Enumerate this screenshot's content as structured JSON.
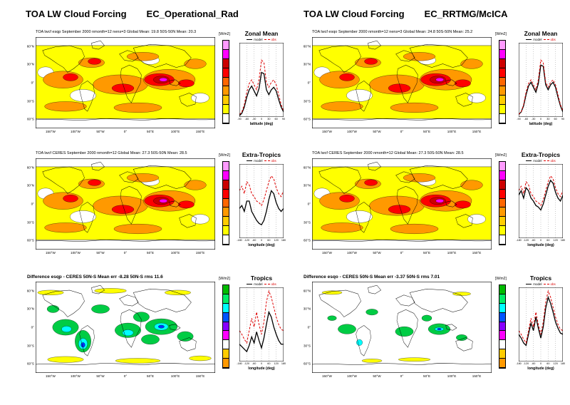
{
  "header": {
    "left_title": "TOA LW Cloud Forcing",
    "left_subtitle": "EC_Operational_Rad",
    "right_title": "TOA LW Cloud Forcing",
    "right_subtitle": "EC_RRTMG/McICA"
  },
  "units_label": "[W/m2]",
  "legend": {
    "model_label": "model",
    "obs_label": "obs"
  },
  "axis": {
    "lat_ticks": [
      "60°N",
      "30°N",
      "0°",
      "30°S",
      "60°S"
    ],
    "lon_ticks": [
      "150°W",
      "100°W",
      "50°W",
      "0°",
      "50°E",
      "100°E",
      "150°E"
    ],
    "latitude_label": "latitude (deg)",
    "longitude_label": "longitude (deg)"
  },
  "maps": {
    "left_model": {
      "caption": "TOA lwcf  esqp  September 2000 nmonth=12 nens=3  Global Mean: 19.8  50S-50N Mean: 20.3"
    },
    "left_obs": {
      "caption": "TOA lwcf  CERES  September 2000 nmonth=12  Global Mean: 27.3  50S-50N Mean: 28.5"
    },
    "left_diff": {
      "caption": "Difference esqp - CERES  50N-S Mean err -8.28 50N-S rms 11.6"
    },
    "right_model": {
      "caption": "TOA lwcf  esqo  September 2000 nmonth=12 nens=3  Global Mean: 24.8  50S-50N Mean: 25.2"
    },
    "right_obs": {
      "caption": "TOA lwcf  CERES  September 2000 nmonth=12  Global Mean: 27.3  50S-50N Mean: 28.5"
    },
    "right_diff": {
      "caption": "Difference esqo - CERES  50N-S Mean err -3.37 50N-S rms 7.01"
    }
  },
  "colorbars": {
    "field": [
      "#ff9aff",
      "#ff00ff",
      "#cc0000",
      "#ff0000",
      "#ff6600",
      "#ff9900",
      "#ffcc00",
      "#ffff00",
      "#ffffff"
    ],
    "diff": [
      "#00bb00",
      "#00ee66",
      "#00ffff",
      "#0055ff",
      "#8800ff",
      "#ff00ff",
      "#ffffff",
      "#ffcc00",
      "#ff9900"
    ]
  },
  "lineplots": {
    "zonal": {
      "title": "Zonal Mean",
      "xlabel": "latitude (deg)"
    },
    "extra": {
      "title": "Extra-Tropics",
      "xlabel": "longitude (deg)"
    },
    "tropics": {
      "title": "Tropics",
      "xlabel": "longitude (deg)"
    }
  },
  "chart_data": [
    {
      "id": "zonal_left",
      "type": "line",
      "title": "Zonal Mean",
      "xlabel": "latitude (deg)",
      "ylabel": "W/m2",
      "x": [
        -90,
        -80,
        -70,
        -60,
        -50,
        -40,
        -30,
        -20,
        -10,
        0,
        10,
        20,
        30,
        40,
        50,
        60,
        70,
        80,
        90
      ],
      "xticks": [
        -90,
        -60,
        -30,
        0,
        30,
        60,
        90
      ],
      "ylim": [
        0,
        60
      ],
      "series": [
        {
          "name": "model",
          "color": "#000000",
          "dash": false,
          "values": [
            1,
            3,
            8,
            16,
            22,
            25,
            21,
            17,
            23,
            36,
            35,
            22,
            18,
            22,
            24,
            21,
            14,
            8,
            4
          ]
        },
        {
          "name": "obs",
          "color": "#dd0000",
          "dash": true,
          "values": [
            2,
            4,
            10,
            20,
            27,
            30,
            26,
            22,
            30,
            46,
            44,
            28,
            24,
            28,
            30,
            26,
            18,
            10,
            5
          ]
        }
      ]
    },
    {
      "id": "extra_left",
      "type": "line",
      "title": "Extra-Tropics",
      "xlabel": "longitude (deg)",
      "ylabel": "W/m2",
      "x": [
        -180,
        -160,
        -140,
        -120,
        -100,
        -80,
        -60,
        -40,
        -20,
        0,
        20,
        40,
        60,
        80,
        100,
        120,
        140,
        160,
        180
      ],
      "xticks": [
        -180,
        -120,
        -60,
        0,
        60,
        120,
        180
      ],
      "ylim": [
        0,
        50
      ],
      "series": [
        {
          "name": "model",
          "color": "#000000",
          "dash": false,
          "values": [
            20,
            22,
            18,
            25,
            25,
            18,
            15,
            12,
            10,
            9,
            12,
            18,
            26,
            32,
            30,
            24,
            20,
            18,
            20
          ]
        },
        {
          "name": "obs",
          "color": "#dd0000",
          "dash": true,
          "values": [
            32,
            35,
            30,
            38,
            36,
            30,
            28,
            25,
            24,
            22,
            26,
            32,
            38,
            42,
            40,
            34,
            30,
            28,
            32
          ]
        }
      ]
    },
    {
      "id": "tropics_left",
      "type": "line",
      "title": "Tropics",
      "xlabel": "longitude (deg)",
      "ylabel": "W/m2",
      "x": [
        -180,
        -160,
        -140,
        -120,
        -100,
        -80,
        -60,
        -40,
        -20,
        0,
        20,
        40,
        60,
        80,
        100,
        120,
        140,
        160,
        180
      ],
      "xticks": [
        -180,
        -120,
        -60,
        0,
        60,
        120,
        180
      ],
      "ylim": [
        0,
        60
      ],
      "series": [
        {
          "name": "model",
          "color": "#000000",
          "dash": false,
          "values": [
            14,
            12,
            10,
            8,
            13,
            20,
            15,
            24,
            17,
            11,
            19,
            30,
            40,
            36,
            28,
            22,
            17,
            14,
            14
          ]
        },
        {
          "name": "obs",
          "color": "#dd0000",
          "dash": true,
          "values": [
            25,
            22,
            18,
            15,
            25,
            35,
            28,
            40,
            30,
            22,
            32,
            48,
            57,
            52,
            44,
            36,
            30,
            26,
            25
          ]
        }
      ]
    },
    {
      "id": "zonal_right",
      "type": "line",
      "title": "Zonal Mean",
      "xlabel": "latitude (deg)",
      "ylabel": "W/m2",
      "x": [
        -90,
        -80,
        -70,
        -60,
        -50,
        -40,
        -30,
        -20,
        -10,
        0,
        10,
        20,
        30,
        40,
        50,
        60,
        70,
        80,
        90
      ],
      "xticks": [
        -90,
        -60,
        -30,
        0,
        30,
        60,
        90
      ],
      "ylim": [
        0,
        60
      ],
      "series": [
        {
          "name": "model",
          "color": "#000000",
          "dash": false,
          "values": [
            2,
            4,
            9,
            18,
            25,
            28,
            24,
            20,
            27,
            42,
            41,
            26,
            22,
            26,
            28,
            24,
            16,
            9,
            4
          ]
        },
        {
          "name": "obs",
          "color": "#dd0000",
          "dash": true,
          "values": [
            2,
            4,
            10,
            20,
            27,
            30,
            26,
            22,
            30,
            46,
            44,
            28,
            24,
            28,
            30,
            26,
            18,
            10,
            5
          ]
        }
      ]
    },
    {
      "id": "extra_right",
      "type": "line",
      "title": "Extra-Tropics",
      "xlabel": "longitude (deg)",
      "ylabel": "W/m2",
      "x": [
        -180,
        -160,
        -140,
        -120,
        -100,
        -80,
        -60,
        -40,
        -20,
        0,
        20,
        40,
        60,
        80,
        100,
        120,
        140,
        160,
        180
      ],
      "xticks": [
        -180,
        -120,
        -60,
        0,
        60,
        120,
        180
      ],
      "ylim": [
        0,
        50
      ],
      "series": [
        {
          "name": "model",
          "color": "#000000",
          "dash": false,
          "values": [
            29,
            32,
            27,
            34,
            32,
            27,
            25,
            22,
            21,
            19,
            23,
            29,
            35,
            39,
            37,
            31,
            27,
            25,
            29
          ]
        },
        {
          "name": "obs",
          "color": "#dd0000",
          "dash": true,
          "values": [
            32,
            35,
            30,
            38,
            36,
            30,
            28,
            25,
            24,
            22,
            26,
            32,
            38,
            42,
            40,
            34,
            30,
            28,
            32
          ]
        }
      ]
    },
    {
      "id": "tropics_right",
      "type": "line",
      "title": "Tropics",
      "xlabel": "longitude (deg)",
      "ylabel": "W/m2",
      "x": [
        -180,
        -160,
        -140,
        -120,
        -100,
        -80,
        -60,
        -40,
        -20,
        0,
        20,
        40,
        60,
        80,
        100,
        120,
        140,
        160,
        180
      ],
      "xticks": [
        -180,
        -120,
        -60,
        0,
        60,
        120,
        180
      ],
      "ylim": [
        0,
        60
      ],
      "series": [
        {
          "name": "model",
          "color": "#000000",
          "dash": false,
          "values": [
            22,
            19,
            15,
            13,
            22,
            31,
            25,
            36,
            27,
            19,
            28,
            43,
            52,
            47,
            40,
            32,
            27,
            23,
            22
          ]
        },
        {
          "name": "obs",
          "color": "#dd0000",
          "dash": true,
          "values": [
            25,
            22,
            18,
            15,
            25,
            35,
            28,
            40,
            30,
            22,
            32,
            48,
            57,
            52,
            44,
            36,
            30,
            26,
            25
          ]
        }
      ]
    }
  ]
}
